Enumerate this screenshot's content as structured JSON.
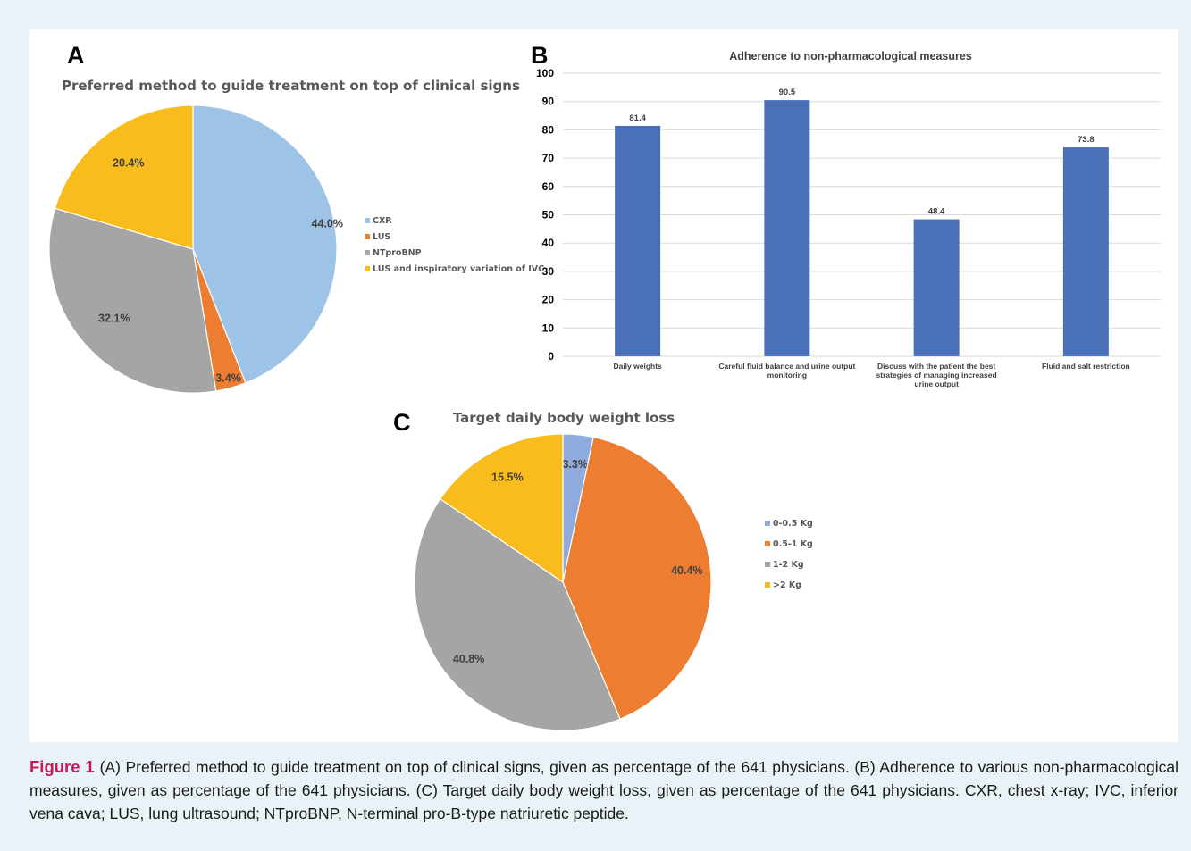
{
  "panels": [
    {
      "letter": "A"
    },
    {
      "letter": "B"
    },
    {
      "letter": "C"
    }
  ],
  "chart_data": [
    {
      "type": "pie",
      "title": "Preferred method to guide treatment on top of clinical signs",
      "labels": [
        "CXR",
        "LUS",
        "NTproBNP",
        "LUS and inspiratory variation of IVC"
      ],
      "values": [
        44.0,
        3.4,
        32.1,
        20.4
      ],
      "value_labels": [
        "44.0%",
        "3.4%",
        "32.1%",
        "20.4%"
      ],
      "colors": [
        "#9dc3e6",
        "#ed7d31",
        "#a5a5a5",
        "#f8bc1c"
      ],
      "legend": "right"
    },
    {
      "type": "bar",
      "title": "Adherence to non-pharmacological measures",
      "categories": [
        [
          "Daily weights"
        ],
        [
          "Careful fluid balance and urine output",
          "monitoring"
        ],
        [
          "Discuss with the patient the best",
          "strategies of managing increased",
          "urine output"
        ],
        [
          "Fluid and salt restriction"
        ]
      ],
      "values": [
        81.4,
        90.5,
        48.4,
        73.8
      ],
      "value_labels": [
        "81.4",
        "90.5",
        "48.4",
        "73.8"
      ],
      "ylim": [
        0,
        100
      ],
      "yticks": [
        0,
        10,
        20,
        30,
        40,
        50,
        60,
        70,
        80,
        90,
        100
      ],
      "grid": true,
      "color": "#4a71b8"
    },
    {
      "type": "pie",
      "title": "Target daily body weight loss",
      "labels": [
        "0-0.5 Kg",
        "0.5-1 Kg",
        "1-2 Kg",
        ">2 Kg"
      ],
      "values": [
        3.3,
        40.4,
        40.8,
        15.5
      ],
      "value_labels": [
        "3.3%",
        "40.4%",
        "40.8%",
        "15.5%"
      ],
      "colors": [
        "#8faadc",
        "#ed7d31",
        "#a5a5a5",
        "#f8bc1c"
      ],
      "legend": "right"
    }
  ],
  "caption": {
    "figure_label": "Figure 1",
    "text": "(A) Preferred method to guide treatment on top of clinical signs, given as percentage of the 641 physicians. (B) Adherence to various non-pharmacological measures, given as percentage of the 641 physicians. (C) Target daily body weight loss, given as percentage of the 641 physicians. CXR, chest x-ray; IVC, inferior vena cava; LUS, lung ultrasound; NTproBNP, N-terminal pro-B-type natriuretic peptide."
  }
}
